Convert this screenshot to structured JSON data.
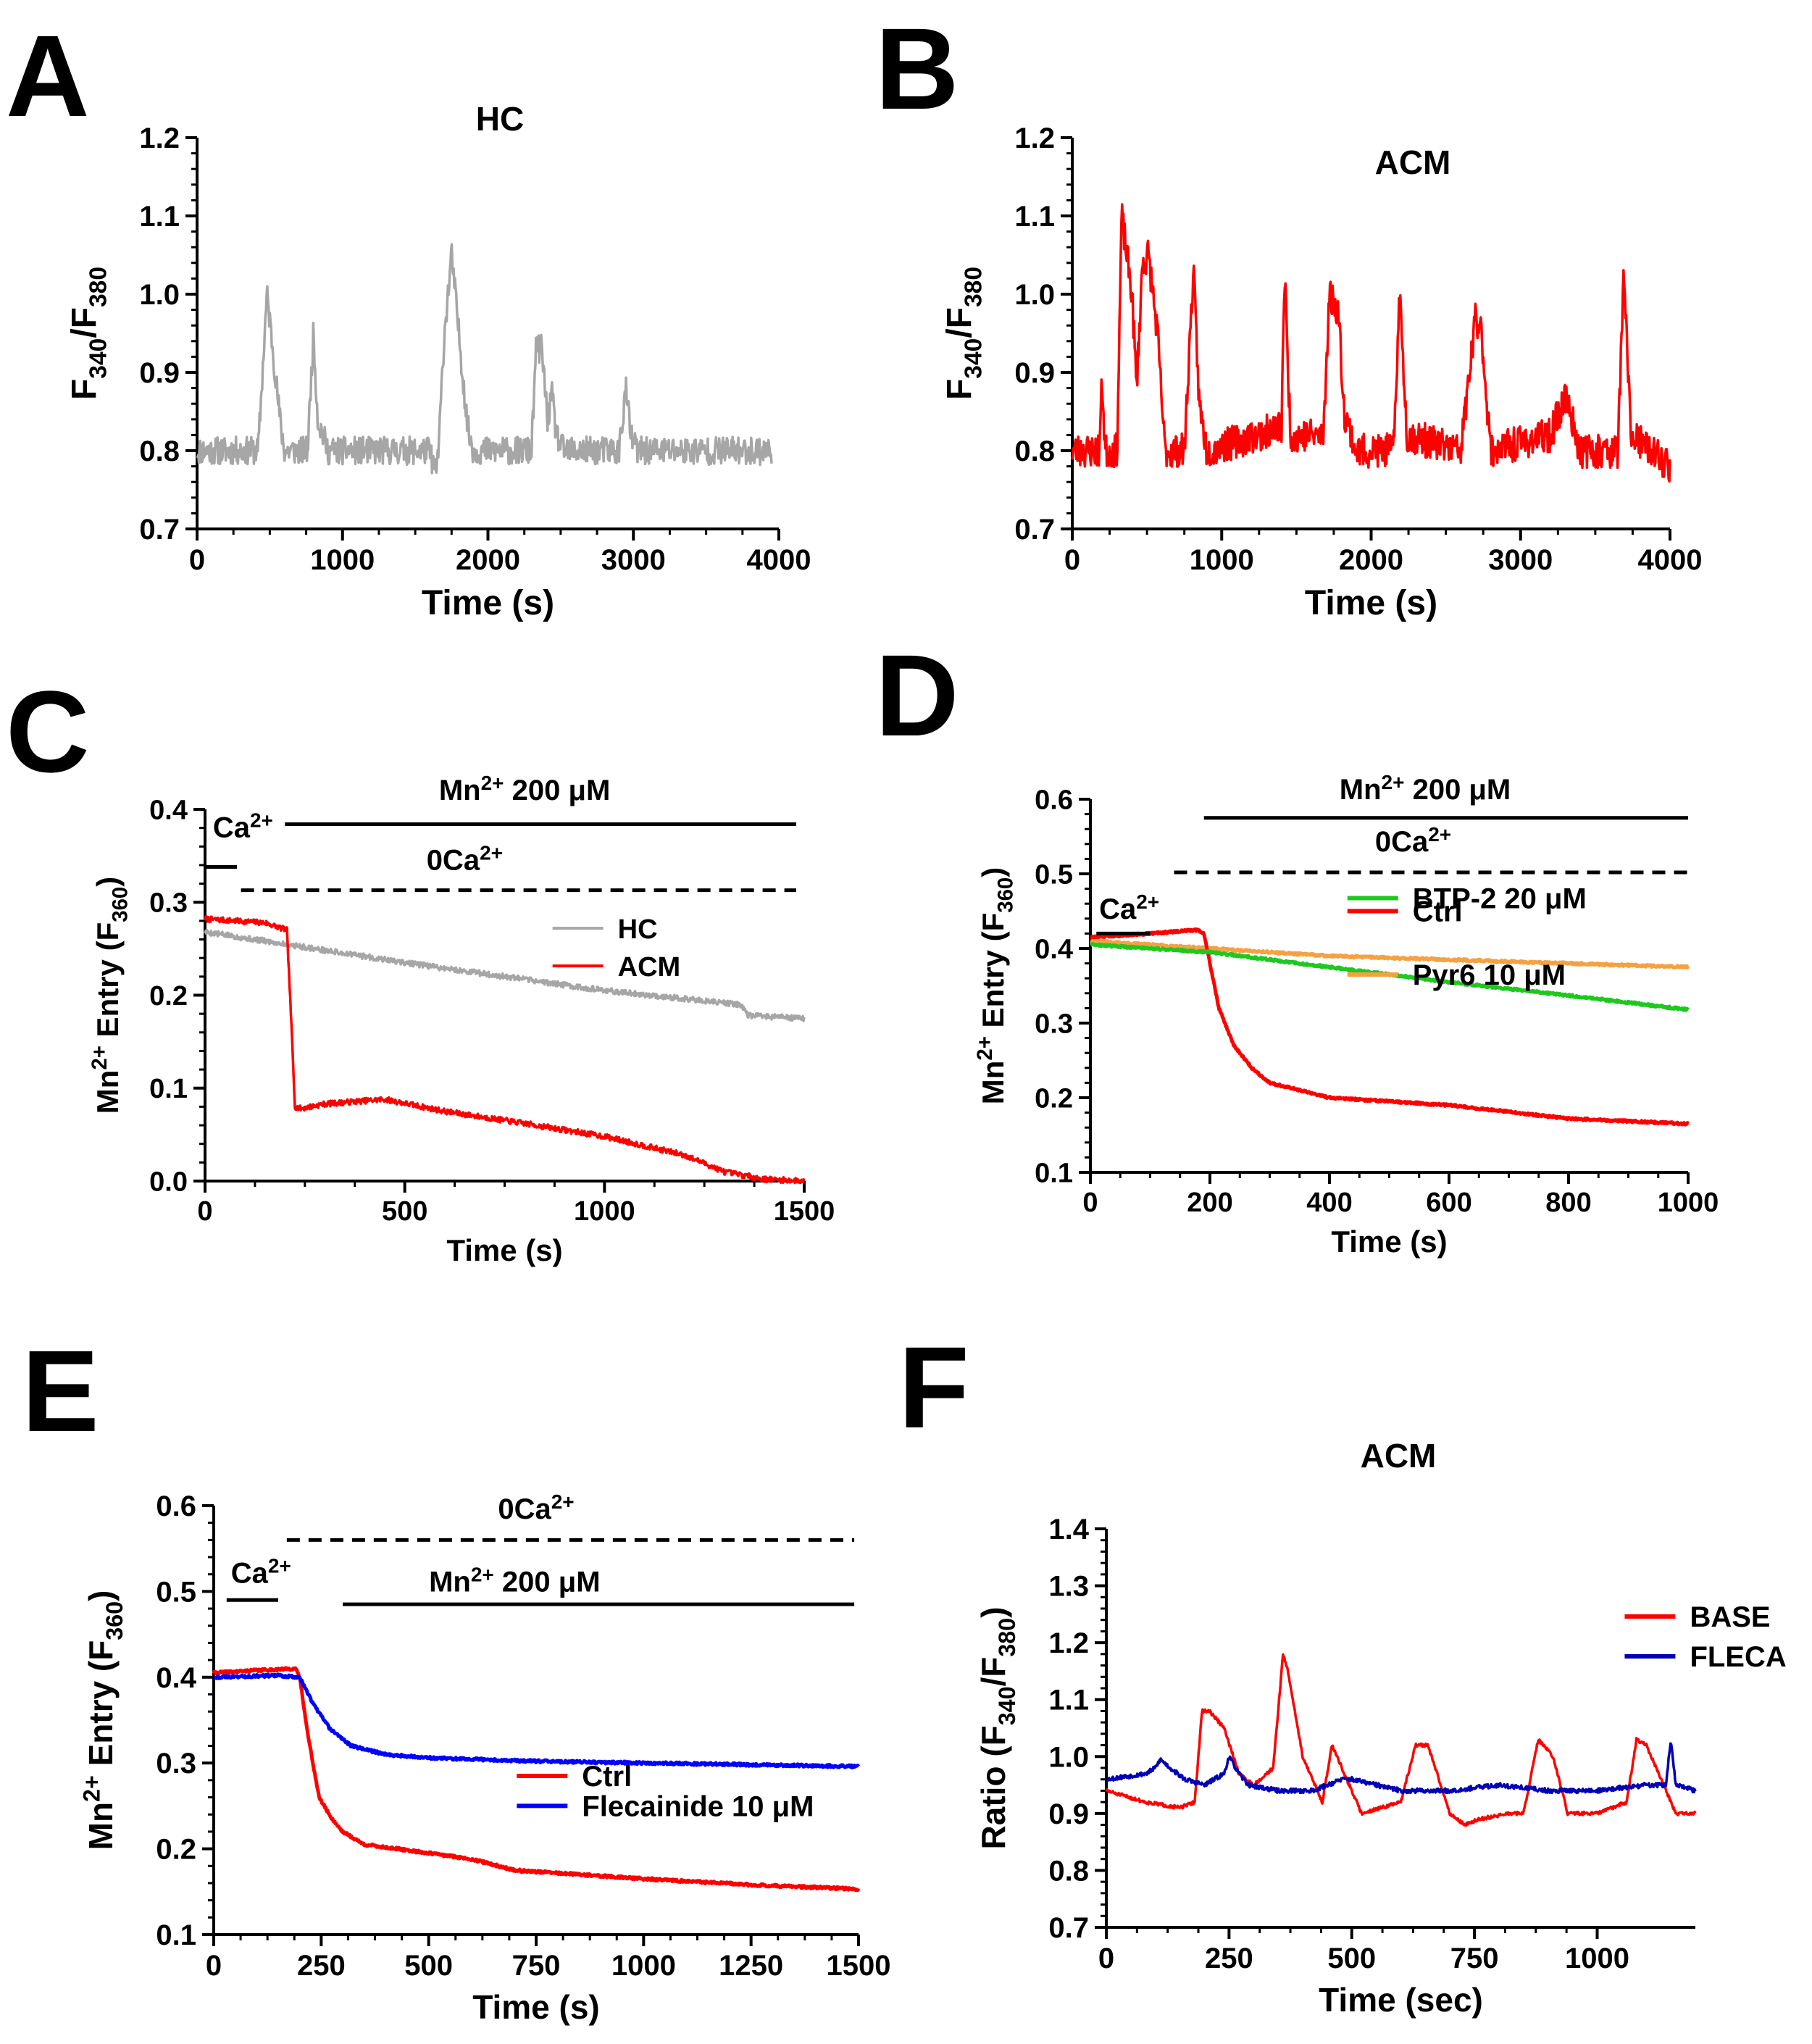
{
  "colors": {
    "axis": "#000000",
    "gray": "#a6a6a6",
    "red": "#ff0000",
    "orange": "#f5a142",
    "green": "#1ec81e",
    "blue": "#0000ff",
    "darkblue": "#0000b4"
  },
  "chart_data": [
    {
      "panel": "A",
      "type": "line",
      "title": "HC",
      "xlabel": "Time (s)",
      "ylabel": "F340/F380",
      "ylabel_parts": {
        "main1": "F",
        "sub1": "340",
        "main2": "/F",
        "sub2": "380"
      },
      "xlim": [
        0,
        4000
      ],
      "ylim": [
        0.7,
        1.2
      ],
      "xticks": [
        0,
        1000,
        2000,
        3000,
        4000
      ],
      "xtick_labels": [
        "0",
        "1000",
        "2000",
        "3000",
        "4000"
      ],
      "yticks": [
        0.7,
        0.8,
        0.9,
        1.0,
        1.1,
        1.2
      ],
      "ytick_labels": [
        "0.7",
        "0.8",
        "0.9",
        "1.0",
        "1.1",
        "1.2"
      ],
      "series": [
        {
          "name": "HC",
          "color": "gray",
          "noise": 0.018,
          "seed": 11,
          "x": [
            0,
            420,
            480,
            510,
            570,
            600,
            760,
            800,
            830,
            900,
            1000,
            1600,
            1640,
            1660,
            1700,
            1750,
            1800,
            1860,
            1900,
            2300,
            2330,
            2370,
            2410,
            2440,
            2470,
            2520,
            2600,
            2900,
            2950,
            2980,
            3030,
            3100,
            3500,
            3950
          ],
          "y": [
            0.8,
            0.8,
            1.0,
            0.95,
            0.84,
            0.8,
            0.8,
            0.95,
            0.84,
            0.8,
            0.8,
            0.8,
            0.77,
            0.8,
            0.95,
            1.05,
            0.95,
            0.83,
            0.8,
            0.8,
            0.93,
            0.93,
            0.84,
            0.87,
            0.82,
            0.8,
            0.8,
            0.8,
            0.88,
            0.82,
            0.8,
            0.8,
            0.8,
            0.8
          ]
        }
      ]
    },
    {
      "panel": "B",
      "type": "line",
      "title": "ACM",
      "xlabel": "Time (s)",
      "ylabel": "F340/F380",
      "ylabel_parts": {
        "main1": "F",
        "sub1": "340",
        "main2": "/F",
        "sub2": "380"
      },
      "xlim": [
        0,
        4000
      ],
      "ylim": [
        0.7,
        1.2
      ],
      "xticks": [
        0,
        1000,
        2000,
        3000,
        4000
      ],
      "xtick_labels": [
        "0",
        "1000",
        "2000",
        "3000",
        "4000"
      ],
      "yticks": [
        0.7,
        0.8,
        0.9,
        1.0,
        1.1,
        1.2
      ],
      "ytick_labels": [
        "0.7",
        "0.8",
        "0.9",
        "1.0",
        "1.1",
        "1.2"
      ],
      "series": [
        {
          "name": "ACM",
          "color": "red",
          "noise": 0.022,
          "seed": 23,
          "x": [
            0,
            180,
            200,
            220,
            300,
            330,
            400,
            430,
            470,
            510,
            570,
            620,
            750,
            810,
            850,
            900,
            1400,
            1420,
            1460,
            1680,
            1720,
            1780,
            1820,
            1900,
            2150,
            2190,
            2240,
            2600,
            2700,
            2740,
            2800,
            3200,
            3300,
            3400,
            3650,
            3690,
            3740,
            4000
          ],
          "y": [
            0.8,
            0.8,
            0.89,
            0.8,
            0.8,
            1.1,
            1.0,
            0.88,
            1.04,
            1.05,
            0.95,
            0.8,
            0.8,
            1.03,
            0.86,
            0.8,
            0.83,
            1.03,
            0.82,
            0.82,
            1.0,
            0.98,
            0.85,
            0.8,
            0.8,
            1.0,
            0.82,
            0.8,
            0.97,
            0.95,
            0.8,
            0.82,
            0.87,
            0.8,
            0.8,
            1.02,
            0.82,
            0.78
          ]
        }
      ]
    },
    {
      "panel": "C",
      "type": "line",
      "xlabel": "Time (s)",
      "ylabel": "Mn2+ Entry (F360)",
      "ylabel_parts": {
        "main1": "Mn",
        "sup1": "2+",
        "main2": " Entry (F",
        "sub2": "360",
        "main3": ")"
      },
      "xlim": [
        0,
        1500
      ],
      "ylim": [
        0.0,
        0.4
      ],
      "xticks": [
        0,
        500,
        1000,
        1500
      ],
      "xtick_labels": [
        "0",
        "500",
        "1000",
        "1500"
      ],
      "yticks": [
        0.0,
        0.1,
        0.2,
        0.3,
        0.4
      ],
      "ytick_labels": [
        "0.0",
        "0.1",
        "0.2",
        "0.3",
        "0.4"
      ],
      "annotations": [
        {
          "kind": "solid",
          "x1": 0,
          "x2": 80,
          "y": 0.338,
          "label_main": "Ca",
          "label_sup": "2+",
          "label_x": 95,
          "label_y": 0.37
        },
        {
          "kind": "solid",
          "x1": 200,
          "x2": 1480,
          "y": 0.384,
          "label_main": "Mn",
          "label_sup": "2+",
          "label_rest": " 200 μM",
          "label_x": 800,
          "label_y": 0.41
        },
        {
          "kind": "dashed",
          "x1": 90,
          "x2": 1480,
          "y": 0.313,
          "label_main": "0Ca",
          "label_sup": "2+",
          "label_x": 650,
          "label_y": 0.335
        }
      ],
      "legend": {
        "placement": "right",
        "entries": [
          "HC",
          "ACM"
        ]
      },
      "series": [
        {
          "name": "HC",
          "color": "gray",
          "noise": 0.003,
          "seed": 5,
          "x": [
            0,
            200,
            500,
            1000,
            1340,
            1360,
            1500
          ],
          "y": [
            0.268,
            0.255,
            0.235,
            0.205,
            0.19,
            0.178,
            0.175
          ]
        },
        {
          "name": "ACM",
          "color": "red",
          "noise": 0.003,
          "seed": 7,
          "x": [
            0,
            150,
            205,
            215,
            225,
            240,
            300,
            450,
            600,
            800,
            1000,
            1200,
            1300,
            1400,
            1500
          ],
          "y": [
            0.282,
            0.278,
            0.27,
            0.18,
            0.08,
            0.078,
            0.083,
            0.088,
            0.075,
            0.062,
            0.048,
            0.028,
            0.01,
            0.002,
            0.0
          ]
        }
      ]
    },
    {
      "panel": "D",
      "type": "line",
      "xlabel": "Time (s)",
      "ylabel": "Mn2+ Entry (F360)",
      "ylabel_parts": {
        "main1": "Mn",
        "sup1": "2+",
        "main2": " Entry (F",
        "sub2": "360",
        "main3": ")"
      },
      "xlim": [
        0,
        1000
      ],
      "ylim": [
        0.1,
        0.6
      ],
      "xticks": [
        0,
        200,
        400,
        600,
        800,
        1000
      ],
      "xtick_labels": [
        "0",
        "200",
        "400",
        "600",
        "800",
        "1000"
      ],
      "yticks": [
        0.1,
        0.2,
        0.3,
        0.4,
        0.5,
        0.6
      ],
      "ytick_labels": [
        "0.1",
        "0.2",
        "0.3",
        "0.4",
        "0.5",
        "0.6"
      ],
      "annotations": [
        {
          "kind": "solid",
          "x1": 190,
          "x2": 1000,
          "y": 0.575,
          "label_main": "Mn",
          "label_sup": "2+",
          "label_rest": " 200 μM",
          "label_x": 560,
          "label_y": 0.6
        },
        {
          "kind": "dashed",
          "x1": 140,
          "x2": 1000,
          "y": 0.502,
          "label_main": "0Ca",
          "label_sup": "2+",
          "label_x": 540,
          "label_y": 0.53
        },
        {
          "kind": "solid",
          "x1": 10,
          "x2": 100,
          "y": 0.42,
          "label_main": "Ca",
          "label_sup": "2+",
          "label_x": 65,
          "label_y": 0.44
        }
      ],
      "legend_entries": [
        {
          "name": "Pyr6 10 μM",
          "color": "orange",
          "x": 0.43,
          "y": 0.47
        },
        {
          "name": "Ctrl",
          "color": "red",
          "x": 0.43,
          "y": 0.3
        },
        {
          "name": "BTP-2 20 μM",
          "color": "green",
          "x": 0.43,
          "y": 0.265
        }
      ],
      "series": [
        {
          "name": "Pyr6 10 μM",
          "color": "orange",
          "noise": 0.0015,
          "seed": 31,
          "x": [
            0,
            200,
            400,
            600,
            800,
            1000
          ],
          "y": [
            0.41,
            0.4,
            0.39,
            0.385,
            0.38,
            0.375
          ]
        },
        {
          "name": "Ctrl",
          "color": "red",
          "noise": 0.0015,
          "seed": 33,
          "x": [
            0,
            100,
            180,
            190,
            200,
            215,
            240,
            270,
            300,
            400,
            600,
            800,
            1000
          ],
          "y": [
            0.415,
            0.42,
            0.425,
            0.42,
            0.38,
            0.32,
            0.27,
            0.24,
            0.22,
            0.2,
            0.19,
            0.172,
            0.165
          ]
        },
        {
          "name": "BTP-2 20 μM",
          "color": "green",
          "noise": 0.0015,
          "seed": 35,
          "x": [
            0,
            200,
            400,
            600,
            800,
            1000
          ],
          "y": [
            0.405,
            0.395,
            0.375,
            0.355,
            0.337,
            0.318
          ]
        }
      ]
    },
    {
      "panel": "E",
      "type": "line",
      "xlabel": "Time (s)",
      "ylabel": "Mn2+ Entry (F360)",
      "ylabel_parts": {
        "main1": "Mn",
        "sup1": "2+",
        "main2": " Entry (F",
        "sub2": "360",
        "main3": ")"
      },
      "xlim": [
        0,
        1500
      ],
      "ylim": [
        0.1,
        0.6
      ],
      "xticks": [
        0,
        250,
        500,
        750,
        1000,
        1250,
        1500
      ],
      "xtick_labels": [
        "0",
        "250",
        "500",
        "750",
        "1000",
        "1250",
        "1500"
      ],
      "yticks": [
        0.1,
        0.2,
        0.3,
        0.4,
        0.5,
        0.6
      ],
      "ytick_labels": [
        "0.1",
        "0.2",
        "0.3",
        "0.4",
        "0.5",
        "0.6"
      ],
      "annotations": [
        {
          "kind": "dashed",
          "x1": 170,
          "x2": 1490,
          "y": 0.56,
          "label_main": "0Ca",
          "label_sup": "2+",
          "label_x": 750,
          "label_y": 0.585
        },
        {
          "kind": "solid",
          "x1": 30,
          "x2": 150,
          "y": 0.49,
          "label_main": "Ca",
          "label_sup": "2+",
          "label_x": 110,
          "label_y": 0.51
        },
        {
          "kind": "solid",
          "x1": 300,
          "x2": 1490,
          "y": 0.485,
          "label_main": "Mn",
          "label_sup": "2+",
          "label_rest": " 200 μM",
          "label_x": 700,
          "label_y": 0.5
        }
      ],
      "legend_entries": [
        {
          "name": "Ctrl",
          "color": "red",
          "x": 0.47,
          "y": 0.63
        },
        {
          "name": "Flecainide 10 μM",
          "color": "blue",
          "x": 0.47,
          "y": 0.7
        }
      ],
      "series": [
        {
          "name": "Ctrl",
          "color": "red",
          "noise": 0.0015,
          "seed": 41,
          "x": [
            0,
            100,
            190,
            200,
            220,
            245,
            275,
            300,
            350,
            500,
            600,
            700,
            1000,
            1250,
            1500
          ],
          "y": [
            0.405,
            0.408,
            0.41,
            0.4,
            0.33,
            0.26,
            0.235,
            0.22,
            0.205,
            0.195,
            0.188,
            0.175,
            0.165,
            0.158,
            0.153
          ]
        },
        {
          "name": "Flecainide 10 μM",
          "color": "blue",
          "noise": 0.0015,
          "seed": 43,
          "x": [
            0,
            150,
            200,
            230,
            270,
            320,
            400,
            500,
            750,
            1000,
            1250,
            1500
          ],
          "y": [
            0.4,
            0.402,
            0.4,
            0.37,
            0.34,
            0.32,
            0.31,
            0.306,
            0.302,
            0.3,
            0.298,
            0.296
          ]
        }
      ]
    },
    {
      "panel": "F",
      "type": "line",
      "title": "ACM",
      "xlabel": "Time (sec)",
      "ylabel": "Ratio (F340/F380)",
      "ylabel_parts": {
        "main1": "Ratio (F",
        "sub1": "340",
        "main2": "/F",
        "sub2": "380",
        "main3": ")"
      },
      "xlim": [
        0,
        1200
      ],
      "ylim": [
        0.7,
        1.4
      ],
      "xticks": [
        0,
        250,
        500,
        750,
        1000
      ],
      "xtick_labels": [
        "0",
        "250",
        "500",
        "750",
        "1000"
      ],
      "yticks": [
        0.7,
        0.8,
        0.9,
        1.0,
        1.1,
        1.2,
        1.3,
        1.4
      ],
      "ytick_labels": [
        "0.7",
        "0.8",
        "0.9",
        "1.0",
        "1.1",
        "1.2",
        "1.3",
        "1.4"
      ],
      "legend_entries": [
        {
          "name": "BASE",
          "color": "red",
          "x": 0.88,
          "y": 0.22
        },
        {
          "name": "FLECA",
          "color": "darkblue",
          "x": 0.88,
          "y": 0.32
        }
      ],
      "series": [
        {
          "name": "BASE",
          "color": "red",
          "noise": 0.003,
          "seed": 51,
          "x": [
            0,
            80,
            150,
            180,
            195,
            210,
            240,
            270,
            300,
            340,
            360,
            370,
            400,
            440,
            460,
            480,
            520,
            600,
            630,
            655,
            700,
            730,
            760,
            820,
            850,
            880,
            910,
            940,
            1000,
            1060,
            1080,
            1100,
            1130,
            1160,
            1180,
            1200
          ],
          "y": [
            0.94,
            0.92,
            0.91,
            0.92,
            1.08,
            1.08,
            1.05,
            0.97,
            0.95,
            0.98,
            1.18,
            1.15,
            1.0,
            0.92,
            1.02,
            0.98,
            0.9,
            0.92,
            1.02,
            1.02,
            0.9,
            0.88,
            0.89,
            0.9,
            0.9,
            1.03,
            1.0,
            0.9,
            0.9,
            0.92,
            1.03,
            1.02,
            0.96,
            0.9,
            0.9,
            0.9
          ]
        },
        {
          "name": "FLECA",
          "color": "darkblue",
          "noise": 0.004,
          "seed": 53,
          "x": [
            0,
            80,
            100,
            110,
            130,
            160,
            200,
            240,
            250,
            270,
            290,
            350,
            420,
            480,
            500,
            600,
            700,
            800,
            900,
            1000,
            1100,
            1140,
            1150,
            1160,
            1200
          ],
          "y": [
            0.96,
            0.97,
            0.98,
            0.995,
            0.98,
            0.96,
            0.95,
            0.97,
            1.0,
            0.97,
            0.95,
            0.94,
            0.94,
            0.96,
            0.96,
            0.94,
            0.94,
            0.95,
            0.94,
            0.94,
            0.95,
            0.95,
            1.03,
            0.95,
            0.94
          ]
        }
      ]
    }
  ],
  "panel_labels": {
    "A": "A",
    "B": "B",
    "C": "C",
    "D": "D",
    "E": "E",
    "F": "F"
  }
}
